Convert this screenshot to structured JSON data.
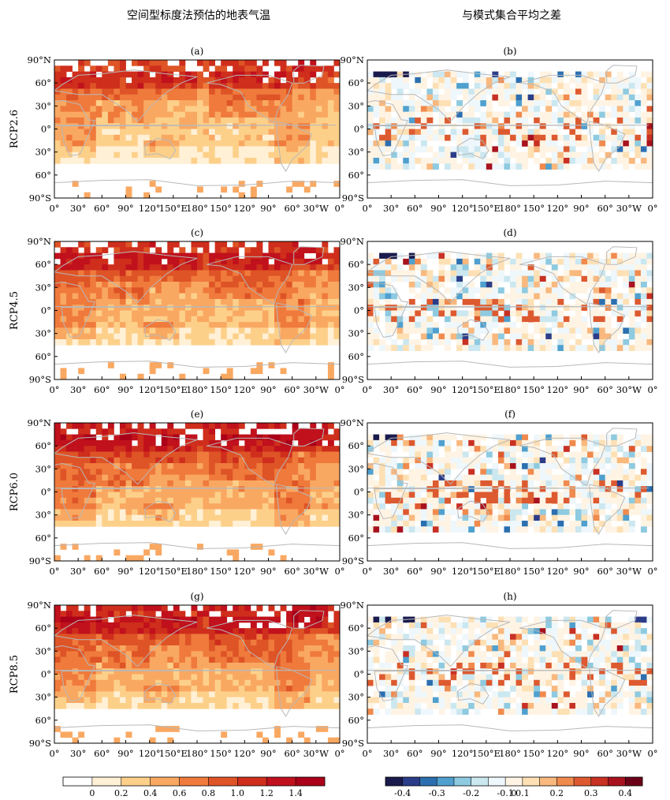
{
  "column_titles": [
    "空间型标度法预估的地表气温",
    "与模式集合平均之差"
  ],
  "row_labels": [
    "RCP2.6",
    "RCP4.5",
    "RCP6.0",
    "RCP8.5"
  ],
  "panel_labels": [
    "(a)",
    "(b)",
    "(c)",
    "(d)",
    "(e)",
    "(f)",
    "(g)",
    "(h)"
  ],
  "lat_ticks": [
    "90°N",
    "60°",
    "30°",
    "0°",
    "30°",
    "60°",
    "90°S"
  ],
  "lon_ticks": [
    "0°",
    "30°",
    "60°",
    "90°",
    "120°",
    "150°E",
    "180°",
    "150°",
    "120°",
    "90°",
    "60°",
    "30°W",
    "0°"
  ],
  "colors": {
    "left_scale": [
      "#ffffff",
      "#fff0d6",
      "#fdd08a",
      "#f9a862",
      "#ef7a3c",
      "#de5426",
      "#cf2e1c",
      "#c0111c",
      "#aa0019"
    ],
    "right_scale": [
      "#1a1a4d",
      "#2b3d88",
      "#2c6fb0",
      "#4fa0cf",
      "#8ecae0",
      "#cbe7f0",
      "#eef7fb",
      "#fff4e4",
      "#fde0b4",
      "#f8b87e",
      "#f08a4d",
      "#dd5a30",
      "#c83023",
      "#a8121e",
      "#6b0018"
    ],
    "coast": "#b8b8b8"
  },
  "chart_data": [
    {
      "type": "heatmap",
      "title": "空间型标度法预估的地表气温",
      "panels": [
        {
          "label": "(a)",
          "row": "RCP2.6",
          "mean_level": 0.55
        },
        {
          "label": "(c)",
          "row": "RCP4.5",
          "mean_level": 0.65
        },
        {
          "label": "(e)",
          "row": "RCP6.0",
          "mean_level": 0.72
        },
        {
          "label": "(g)",
          "row": "RCP8.5",
          "mean_level": 0.7
        }
      ],
      "x_range": [
        0,
        360
      ],
      "y_range": [
        -90,
        90
      ],
      "colorbar": {
        "tick_labels": [
          "0",
          "0.2",
          "0.4",
          "0.6",
          "0.8",
          "1.0",
          "1.2",
          "1.4"
        ],
        "bounds": [
          -0.2,
          0,
          0.2,
          0.4,
          0.6,
          0.8,
          1.0,
          1.2,
          1.4,
          1.6
        ]
      }
    },
    {
      "type": "heatmap",
      "title": "与模式集合平均之差",
      "panels": [
        {
          "label": "(b)",
          "row": "RCP2.6"
        },
        {
          "label": "(d)",
          "row": "RCP4.5"
        },
        {
          "label": "(f)",
          "row": "RCP6.0"
        },
        {
          "label": "(h)",
          "row": "RCP8.5"
        }
      ],
      "x_range": [
        0,
        360
      ],
      "y_range": [
        -90,
        90
      ],
      "colorbar": {
        "tick_labels": [
          "-0.4",
          "-0.3",
          "-0.2",
          "-0.1",
          "0",
          "0.1",
          "0.2",
          "0.3",
          "0.4"
        ],
        "bounds": [
          -0.45,
          -0.4,
          -0.35,
          -0.3,
          -0.25,
          -0.2,
          -0.15,
          -0.1,
          -0.05,
          0.05,
          0.1,
          0.15,
          0.2,
          0.25,
          0.3,
          0.35,
          0.4,
          0.45
        ]
      }
    }
  ]
}
